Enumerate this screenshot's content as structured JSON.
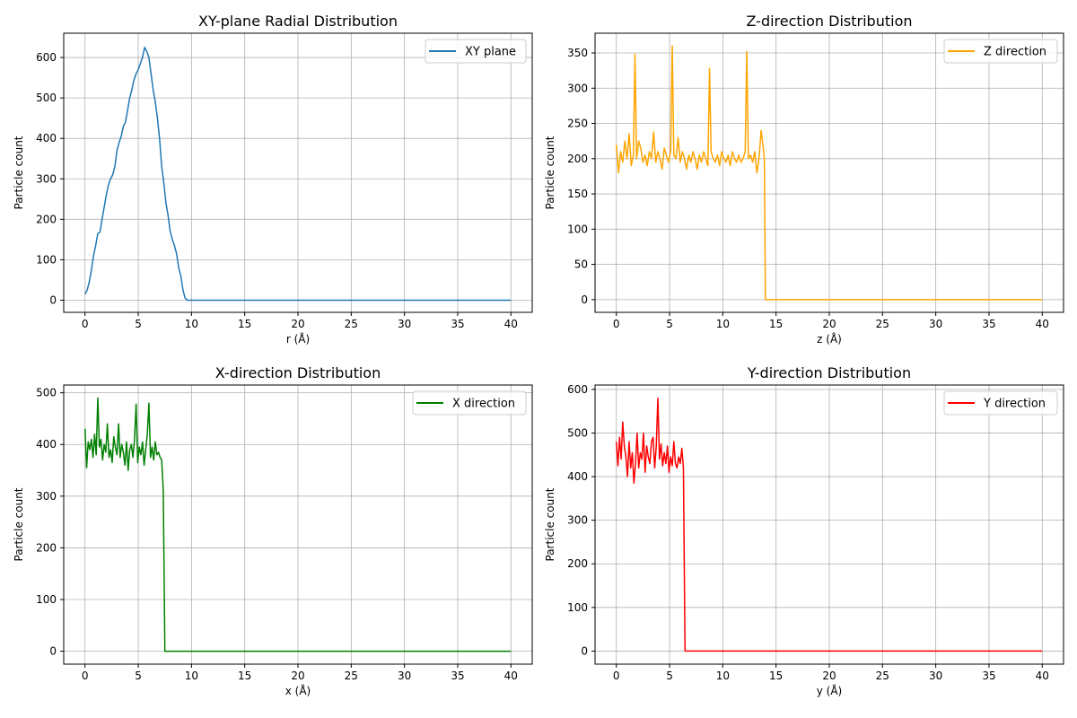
{
  "chart_data": [
    {
      "type": "line",
      "title": "XY-plane Radial Distribution",
      "xlabel": "r (Å)",
      "ylabel": "Particle count",
      "xlim": [
        -2,
        42
      ],
      "ylim": [
        -30,
        660
      ],
      "xticks": [
        0,
        5,
        10,
        15,
        20,
        25,
        30,
        35,
        40
      ],
      "yticks": [
        0,
        100,
        200,
        300,
        400,
        500,
        600
      ],
      "grid": true,
      "legend_position": "upper right",
      "series": [
        {
          "name": "XY plane",
          "color": "#1f77b4",
          "x": [
            0,
            0.2,
            0.4,
            0.6,
            0.8,
            1,
            1.2,
            1.4,
            1.6,
            1.8,
            2,
            2.2,
            2.4,
            2.6,
            2.8,
            3,
            3.2,
            3.4,
            3.6,
            3.8,
            4,
            4.2,
            4.4,
            4.6,
            4.8,
            5,
            5.2,
            5.4,
            5.6,
            5.8,
            6,
            6.2,
            6.4,
            6.6,
            6.8,
            7,
            7.2,
            7.4,
            7.6,
            7.8,
            8,
            8.2,
            8.4,
            8.6,
            8.8,
            9,
            9.2,
            9.4,
            9.6,
            9.8,
            10,
            12,
            16,
            20,
            24,
            28,
            32,
            36,
            40
          ],
          "y": [
            15,
            25,
            45,
            75,
            110,
            135,
            165,
            168,
            200,
            230,
            260,
            285,
            300,
            310,
            330,
            370,
            390,
            405,
            430,
            440,
            470,
            500,
            520,
            545,
            560,
            570,
            585,
            600,
            625,
            615,
            600,
            560,
            520,
            490,
            450,
            400,
            330,
            290,
            240,
            210,
            170,
            150,
            135,
            115,
            80,
            60,
            25,
            5,
            0,
            0,
            0,
            0,
            0,
            0,
            0,
            0,
            0,
            0,
            0
          ]
        }
      ]
    },
    {
      "type": "line",
      "title": "Z-direction Distribution",
      "xlabel": "z (Å)",
      "ylabel": "Particle count",
      "xlim": [
        -2,
        42
      ],
      "ylim": [
        -18,
        378
      ],
      "xticks": [
        0,
        5,
        10,
        15,
        20,
        25,
        30,
        35,
        40
      ],
      "yticks": [
        0,
        50,
        100,
        150,
        200,
        250,
        300,
        350
      ],
      "grid": true,
      "legend_position": "upper right",
      "series": [
        {
          "name": "Z direction",
          "color": "#ffa500",
          "x": [
            0,
            0.2,
            0.4,
            0.6,
            0.8,
            1,
            1.2,
            1.4,
            1.6,
            1.75,
            1.9,
            2.1,
            2.3,
            2.5,
            2.7,
            2.9,
            3.1,
            3.3,
            3.5,
            3.7,
            3.9,
            4.1,
            4.3,
            4.5,
            4.7,
            4.9,
            5.1,
            5.25,
            5.4,
            5.6,
            5.8,
            6,
            6.2,
            6.4,
            6.6,
            6.8,
            7,
            7.2,
            7.4,
            7.6,
            7.8,
            8,
            8.2,
            8.4,
            8.6,
            8.75,
            8.9,
            9.1,
            9.3,
            9.5,
            9.7,
            9.9,
            10.1,
            10.3,
            10.5,
            10.7,
            10.9,
            11.1,
            11.3,
            11.5,
            11.7,
            11.9,
            12.1,
            12.25,
            12.4,
            12.6,
            12.8,
            13,
            13.2,
            13.4,
            13.6,
            13.8,
            13.9,
            14,
            16,
            20,
            24,
            28,
            32,
            36,
            40
          ],
          "y": [
            220,
            180,
            210,
            195,
            225,
            200,
            235,
            190,
            205,
            348,
            200,
            225,
            215,
            195,
            205,
            190,
            210,
            200,
            238,
            195,
            210,
            200,
            185,
            215,
            205,
            195,
            210,
            360,
            205,
            200,
            230,
            195,
            210,
            200,
            185,
            205,
            195,
            210,
            200,
            185,
            205,
            195,
            210,
            200,
            190,
            328,
            210,
            200,
            195,
            205,
            190,
            210,
            200,
            195,
            205,
            190,
            210,
            200,
            195,
            205,
            195,
            200,
            210,
            352,
            200,
            205,
            195,
            210,
            180,
            200,
            240,
            215,
            200,
            0,
            0,
            0,
            0,
            0,
            0,
            0,
            0
          ]
        }
      ]
    },
    {
      "type": "line",
      "title": "X-direction Distribution",
      "xlabel": "x (Å)",
      "ylabel": "Particle count",
      "xlim": [
        -2,
        42
      ],
      "ylim": [
        -25,
        515
      ],
      "xticks": [
        0,
        5,
        10,
        15,
        20,
        25,
        30,
        35,
        40
      ],
      "yticks": [
        0,
        100,
        200,
        300,
        400,
        500
      ],
      "grid": true,
      "legend_position": "upper right",
      "series": [
        {
          "name": "X direction",
          "color": "#008000",
          "x": [
            0,
            0.15,
            0.3,
            0.45,
            0.6,
            0.75,
            0.9,
            1.05,
            1.2,
            1.35,
            1.5,
            1.65,
            1.8,
            1.95,
            2.1,
            2.25,
            2.4,
            2.55,
            2.7,
            2.85,
            3,
            3.15,
            3.3,
            3.45,
            3.6,
            3.75,
            3.9,
            4.05,
            4.2,
            4.35,
            4.5,
            4.65,
            4.8,
            4.95,
            5.1,
            5.25,
            5.4,
            5.55,
            5.7,
            5.85,
            6,
            6.15,
            6.3,
            6.45,
            6.6,
            6.75,
            6.9,
            7.05,
            7.2,
            7.35,
            7.5,
            10,
            15,
            20,
            25,
            30,
            35,
            40
          ],
          "y": [
            430,
            355,
            405,
            390,
            410,
            375,
            420,
            380,
            490,
            395,
            410,
            370,
            400,
            385,
            440,
            375,
            390,
            365,
            415,
            395,
            380,
            440,
            375,
            400,
            385,
            360,
            405,
            350,
            390,
            400,
            375,
            410,
            478,
            365,
            395,
            380,
            405,
            360,
            390,
            420,
            480,
            375,
            395,
            370,
            405,
            380,
            385,
            375,
            370,
            310,
            0,
            0,
            0,
            0,
            0,
            0,
            0,
            0
          ]
        }
      ]
    },
    {
      "type": "line",
      "title": "Y-direction Distribution",
      "xlabel": "y (Å)",
      "ylabel": "Particle count",
      "xlim": [
        -2,
        42
      ],
      "ylim": [
        -30,
        610
      ],
      "xticks": [
        0,
        5,
        10,
        15,
        20,
        25,
        30,
        35,
        40
      ],
      "yticks": [
        0,
        100,
        200,
        300,
        400,
        500,
        600
      ],
      "grid": true,
      "legend_position": "upper right",
      "series": [
        {
          "name": "Y direction",
          "color": "#ff0000",
          "x": [
            0,
            0.15,
            0.3,
            0.45,
            0.6,
            0.75,
            0.9,
            1.05,
            1.2,
            1.35,
            1.5,
            1.65,
            1.8,
            1.95,
            2.1,
            2.25,
            2.4,
            2.55,
            2.7,
            2.85,
            3,
            3.15,
            3.3,
            3.45,
            3.6,
            3.75,
            3.9,
            4.05,
            4.2,
            4.35,
            4.5,
            4.65,
            4.8,
            4.95,
            5.1,
            5.25,
            5.4,
            5.55,
            5.7,
            5.85,
            6,
            6.15,
            6.3,
            6.45,
            6.6,
            10,
            15,
            20,
            25,
            30,
            35,
            40
          ],
          "y": [
            480,
            425,
            490,
            440,
            525,
            470,
            445,
            400,
            480,
            420,
            455,
            385,
            430,
            500,
            420,
            455,
            440,
            500,
            410,
            470,
            445,
            430,
            480,
            490,
            420,
            470,
            580,
            440,
            475,
            425,
            455,
            430,
            470,
            410,
            445,
            425,
            480,
            430,
            420,
            445,
            430,
            465,
            420,
            0,
            0,
            0,
            0,
            0,
            0,
            0,
            0,
            0
          ]
        }
      ]
    }
  ]
}
